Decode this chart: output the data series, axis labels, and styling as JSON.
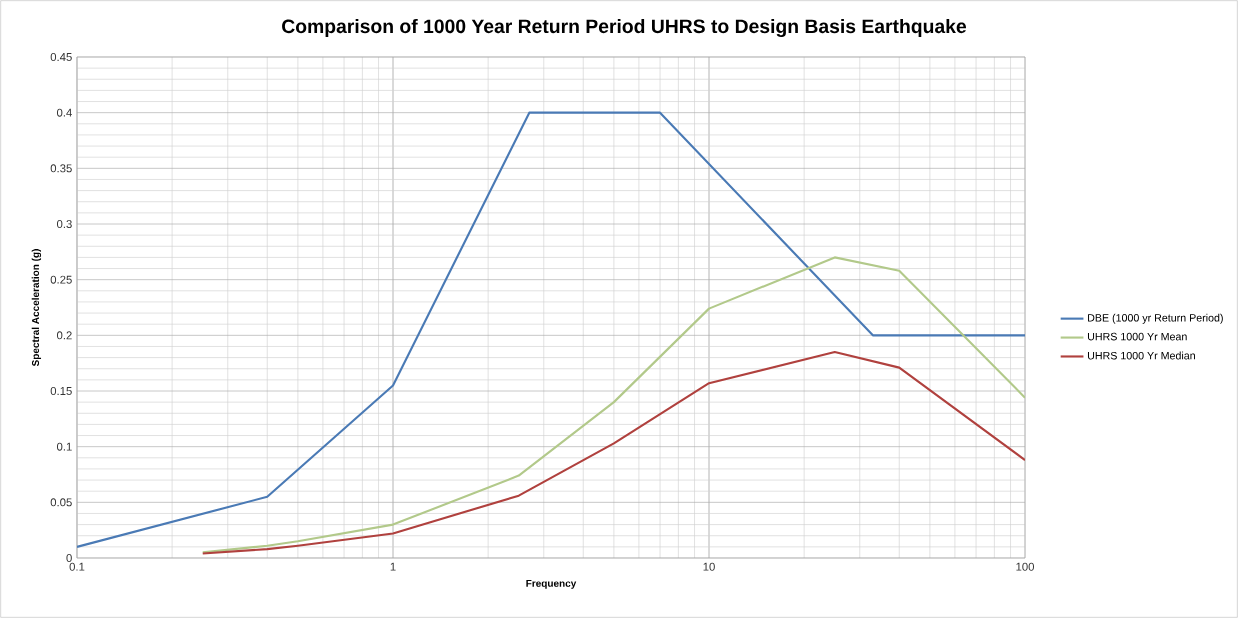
{
  "chart_data": {
    "type": "line",
    "title": "Comparison of 1000 Year Return Period UHRS to Design Basis Earthquake",
    "xlabel": "Frequency",
    "ylabel": "Spectral Acceleration (g)",
    "log": "x",
    "grid": true,
    "legend": "right",
    "xlim": [
      0.1,
      100
    ],
    "xticks": [
      0.1,
      1,
      10,
      100
    ],
    "ylim": [
      0,
      0.45
    ],
    "yticks": [
      0,
      0.05,
      0.1,
      0.15,
      0.2,
      0.25,
      0.3,
      0.35,
      0.4,
      0.45
    ],
    "series": [
      {
        "name": "DBE (1000 yr Return Period)",
        "color": "#4a7ab5",
        "x": [
          0.1,
          0.4,
          1,
          2.7,
          7,
          33,
          100
        ],
        "values": [
          0.01,
          0.055,
          0.155,
          0.4,
          0.4,
          0.2,
          0.2
        ]
      },
      {
        "name": "UHRS 1000 Yr Mean",
        "color": "#b2c98a",
        "x": [
          0.25,
          0.4,
          0.5,
          1,
          2.5,
          5,
          10,
          25,
          40,
          100
        ],
        "values": [
          0.005,
          0.011,
          0.015,
          0.03,
          0.074,
          0.14,
          0.224,
          0.27,
          0.258,
          0.144
        ]
      },
      {
        "name": "UHRS 1000 Yr Median",
        "color": "#b0413e",
        "x": [
          0.25,
          0.4,
          0.5,
          1,
          2.5,
          5,
          10,
          25,
          40,
          100
        ],
        "values": [
          0.004,
          0.008,
          0.011,
          0.022,
          0.056,
          0.103,
          0.157,
          0.185,
          0.171,
          0.088
        ]
      }
    ]
  }
}
